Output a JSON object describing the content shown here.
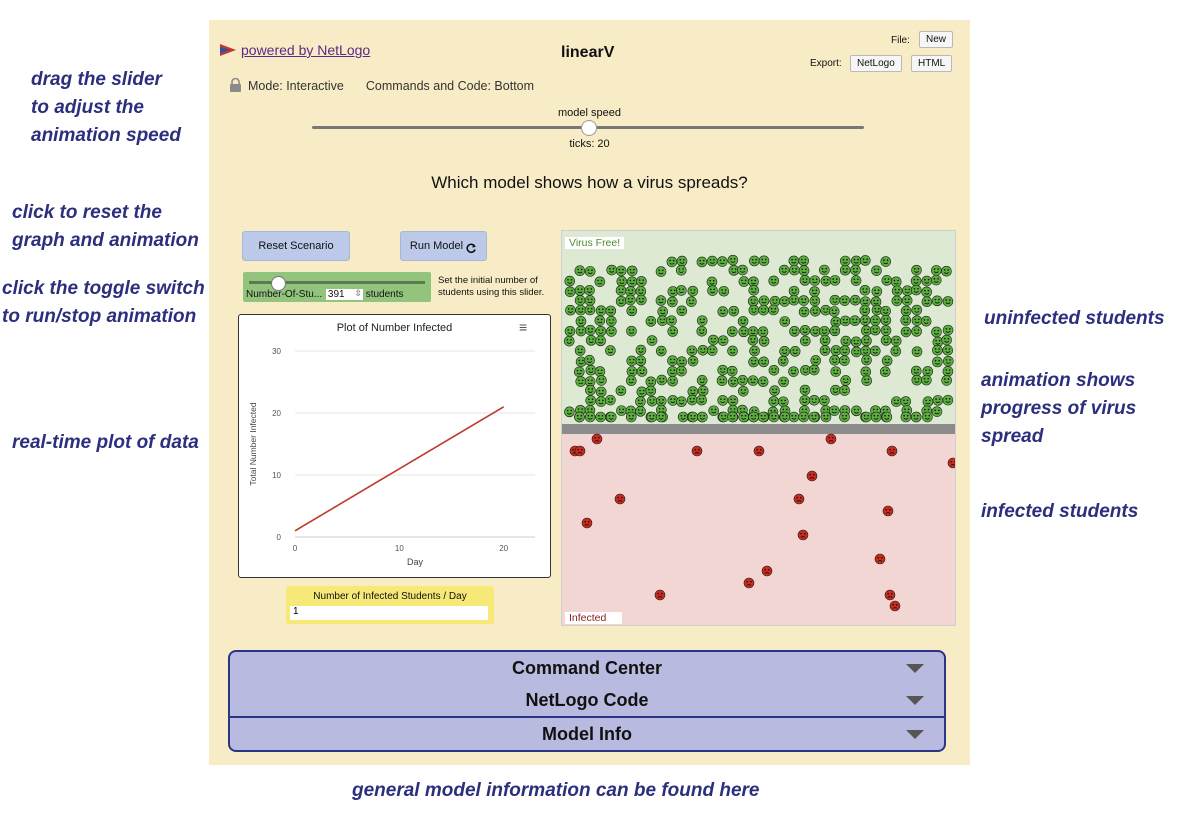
{
  "annotations": {
    "drag_slider": "drag the slider\nto adjust the\nanimation speed",
    "reset": "click to reset the\ngraph and animation",
    "toggle": "click the toggle switch\nto run/stop animation",
    "plot": "real-time plot of data",
    "uninfected": "uninfected students",
    "animation": "animation shows\nprogress of virus\nspread",
    "infected": "infected students",
    "general": "general model information can be found here"
  },
  "header": {
    "powered_by": "powered by NetLogo",
    "title": "linearV",
    "file_label": "File:",
    "new_button": "New",
    "export_label": "Export:",
    "netlogo_button": "NetLogo",
    "html_button": "HTML",
    "mode": "Mode: Interactive",
    "commands_code": "Commands and Code: Bottom"
  },
  "speed": {
    "label": "model speed",
    "ticks": "ticks: 20"
  },
  "question": "Which model shows how a virus spreads?",
  "controls": {
    "reset_button": "Reset Scenario",
    "run_button": "Run Model",
    "slider_label": "Number-Of-Stu...",
    "slider_value": "391",
    "slider_units": "students",
    "slider_help": "Set the initial number of students using this slider."
  },
  "plot": {
    "title": "Plot of Number Infected",
    "menu_icon": "hamburger-menu-icon",
    "line_color": "#c0392b"
  },
  "chart_data": {
    "type": "line",
    "title": "Plot of Number Infected",
    "xlabel": "Day",
    "ylabel": "Total Number Infected",
    "x_ticks": [
      "0",
      "10",
      "20"
    ],
    "y_ticks": [
      "0",
      "10",
      "20",
      "30"
    ],
    "xlim": [
      0,
      23
    ],
    "ylim": [
      0,
      30
    ],
    "series": [
      {
        "x": [
          0,
          20
        ],
        "y": [
          1,
          21
        ]
      }
    ],
    "grid": true
  },
  "monitor": {
    "label": "Number of Infected Students / Day",
    "value": "1"
  },
  "world": {
    "virus_free_label": "Virus Free!",
    "infected_label": "Infected",
    "healthy_color": "#5cae3f",
    "infected_color": "#cc2a1f",
    "healthy_bg": "#dde9d3",
    "infected_bg": "#f2d6d4"
  },
  "accordion": {
    "command_center": "Command Center",
    "code": "NetLogo Code",
    "info": "Model Info"
  }
}
